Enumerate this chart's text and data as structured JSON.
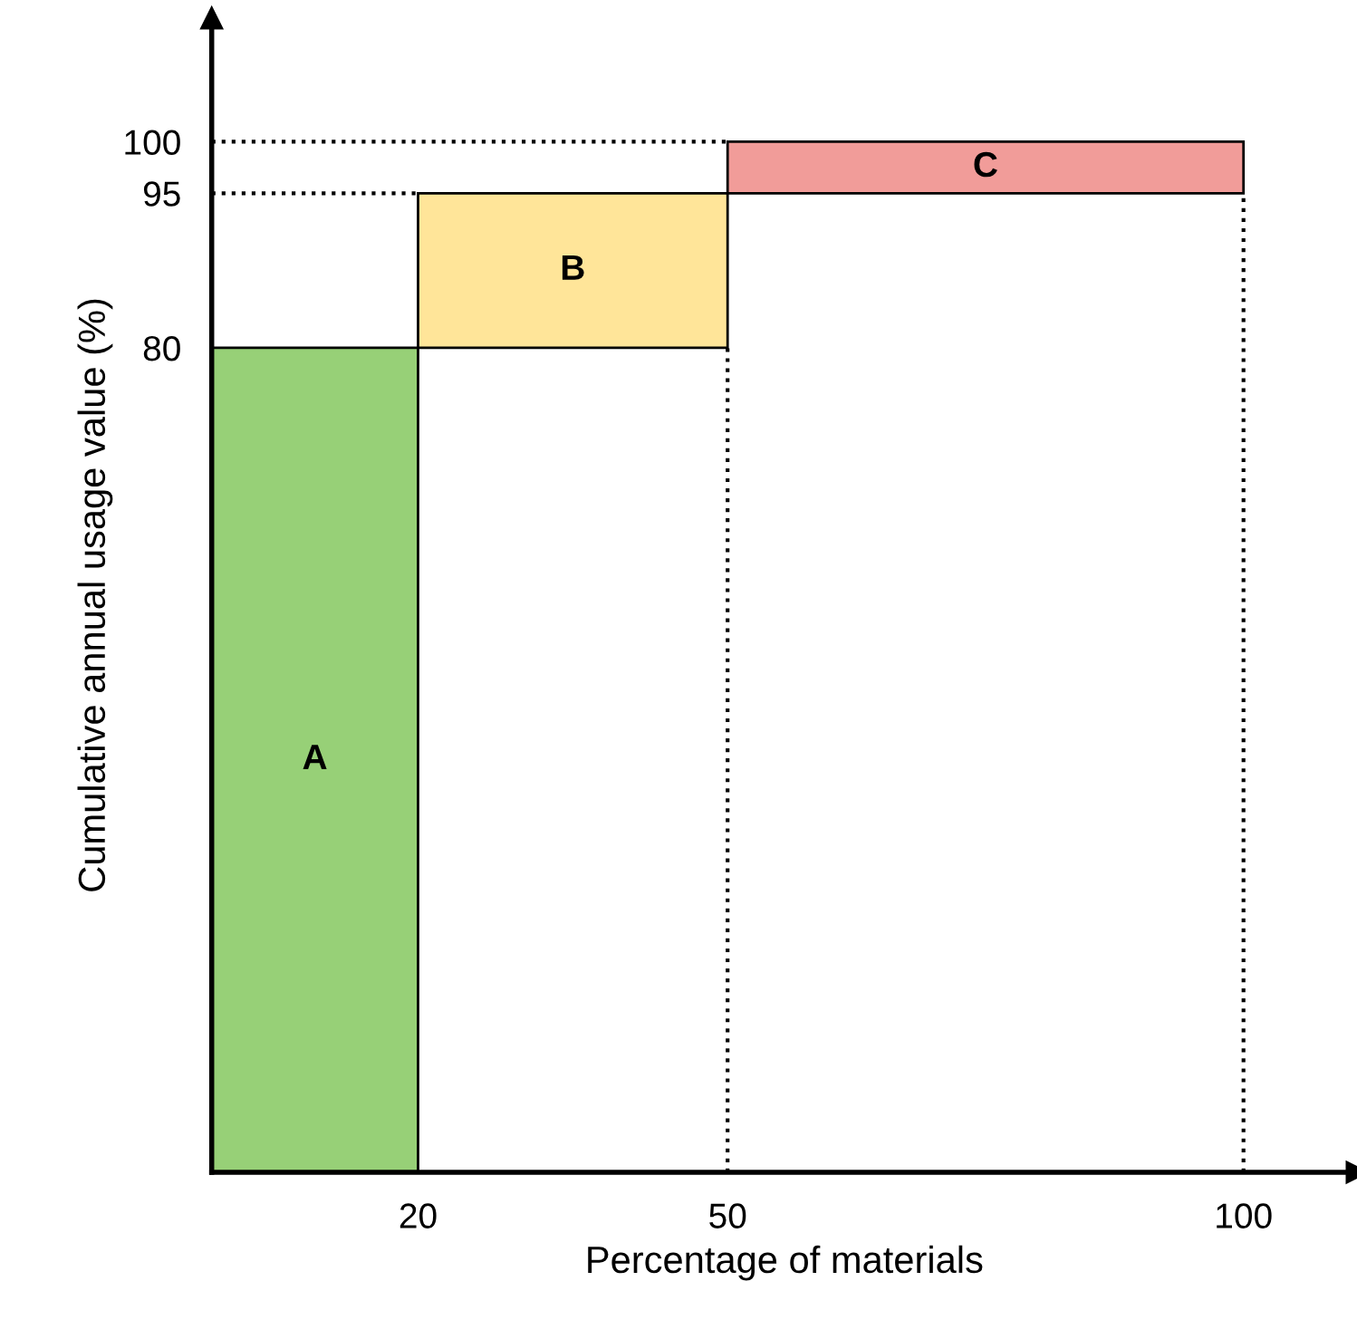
{
  "chart_data": {
    "type": "histogram",
    "xlabel": "Percentage of materials",
    "ylabel": "Cumulative annual usage value (%)",
    "bins": [
      0,
      20,
      50,
      100
    ],
    "values": [
      80,
      15,
      5
    ],
    "base": [
      0,
      80,
      95
    ],
    "colors": [
      "#97d077",
      "#ffe599",
      "#f19c99"
    ],
    "xlim": [
      0,
      111
    ],
    "ylim": [
      0,
      112
    ],
    "xticks": [
      20,
      50,
      100
    ],
    "yticks": [
      80,
      95,
      100
    ],
    "ref_lines": [
      {
        "axis": "y",
        "value": 95,
        "line_style": "dotted"
      },
      {
        "axis": "y",
        "value": 100,
        "line_style": "dotted"
      },
      {
        "axis": "x",
        "value": 50,
        "line_style": "dotted"
      },
      {
        "axis": "x",
        "value": 100,
        "line_style": "dotted"
      }
    ],
    "value_labels": [
      "A",
      "B",
      "C"
    ],
    "grid": false,
    "legend": false
  }
}
